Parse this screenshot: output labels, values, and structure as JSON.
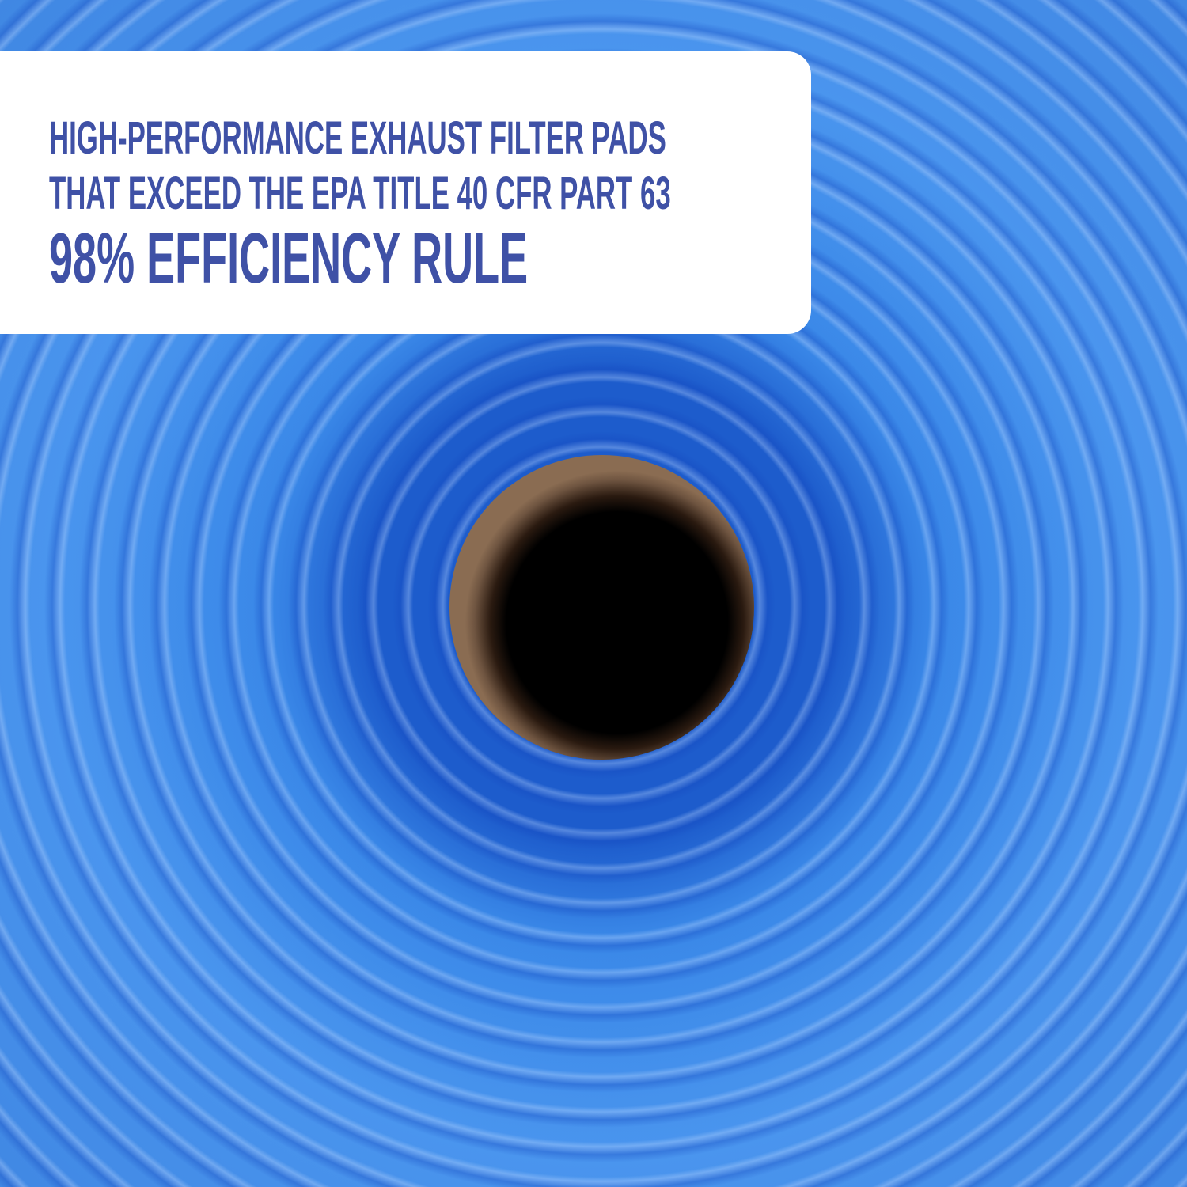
{
  "headline": {
    "line1": "HIGH-PERFORMANCE EXHAUST FILTER PADS",
    "line2": "THAT EXCEED THE EPA TITLE 40 CFR PART 63",
    "line3": "98% EFFICIENCY RULE"
  },
  "colors": {
    "text": "#3f51a6",
    "card": "#ffffff",
    "filter_media": "#2f7fe0"
  }
}
